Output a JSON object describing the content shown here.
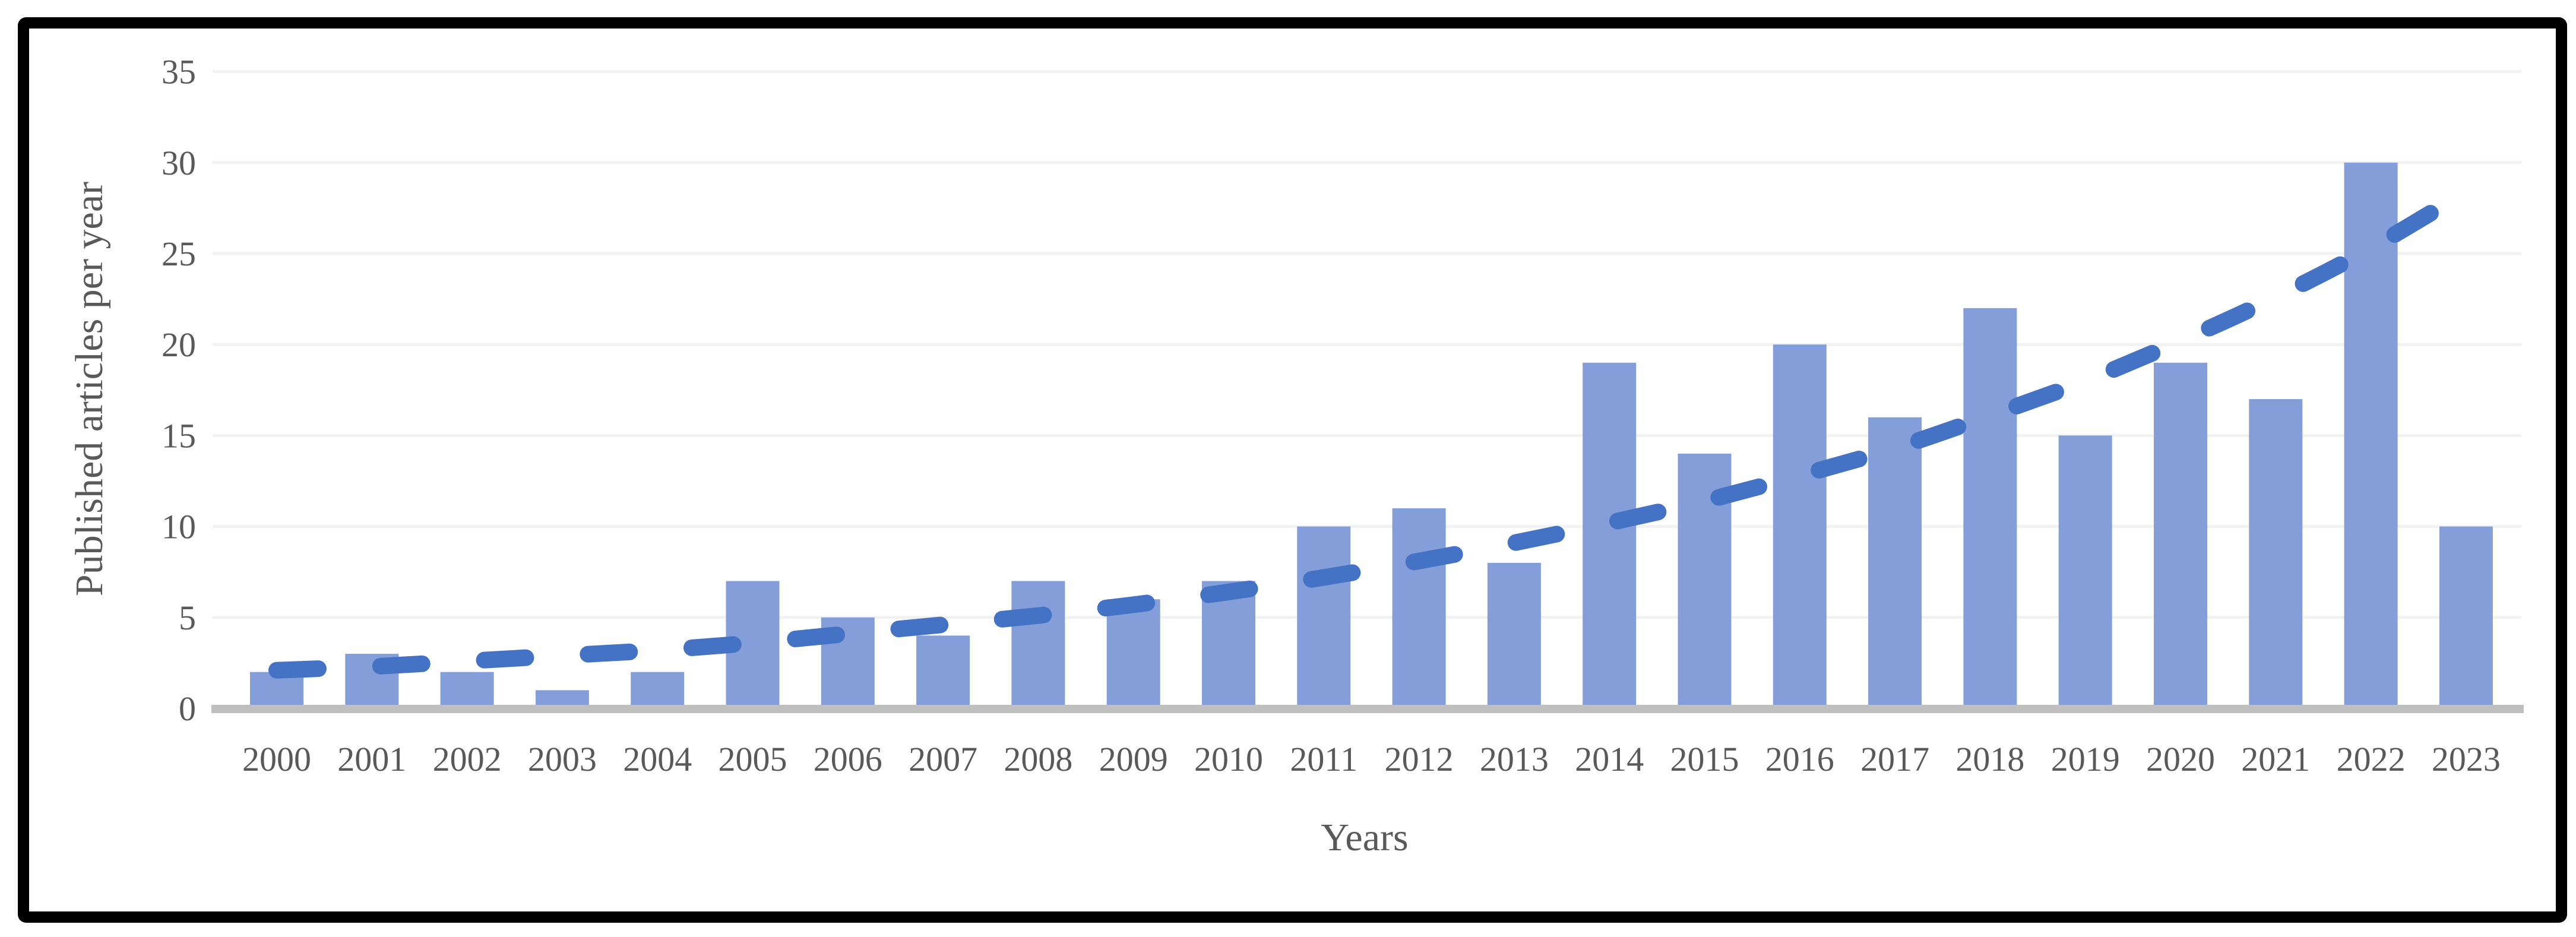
{
  "chart_data": {
    "type": "bar",
    "title": "",
    "xlabel": "Years",
    "ylabel": "Published articles per year",
    "categories": [
      "2000",
      "2001",
      "2002",
      "2003",
      "2004",
      "2005",
      "2006",
      "2007",
      "2008",
      "2009",
      "2010",
      "2011",
      "2012",
      "2013",
      "2014",
      "2015",
      "2016",
      "2017",
      "2018",
      "2019",
      "2020",
      "2021",
      "2022",
      "2023"
    ],
    "values": [
      2,
      3,
      2,
      1,
      2,
      7,
      5,
      4,
      7,
      6,
      7,
      10,
      11,
      8,
      19,
      14,
      20,
      16,
      22,
      15,
      19,
      17,
      30,
      10
    ],
    "ylim": [
      0,
      35
    ],
    "yticks": [
      0,
      5,
      10,
      15,
      20,
      25,
      30,
      35
    ],
    "grid": true,
    "legend": "none",
    "trendline": {
      "type": "exponential",
      "style": "dashed",
      "start_value": 2.05,
      "growth_per_year": 1.121,
      "values": [
        2.1,
        2.3,
        2.6,
        2.9,
        3.2,
        3.6,
        4.1,
        4.6,
        5.1,
        5.7,
        6.4,
        7.2,
        8.1,
        9.1,
        10.2,
        11.4,
        12.8,
        14.3,
        16.1,
        18.0,
        20.2,
        22.6,
        25.3,
        28.4
      ]
    }
  },
  "colors": {
    "bar_fill": "#7C99D6",
    "trendline": "#4472C4",
    "gridline": "#F2F2F2",
    "axis_line": "#BFBFBF",
    "text": "#595959",
    "figure_border": "#000000",
    "background": "#FFFFFF"
  }
}
